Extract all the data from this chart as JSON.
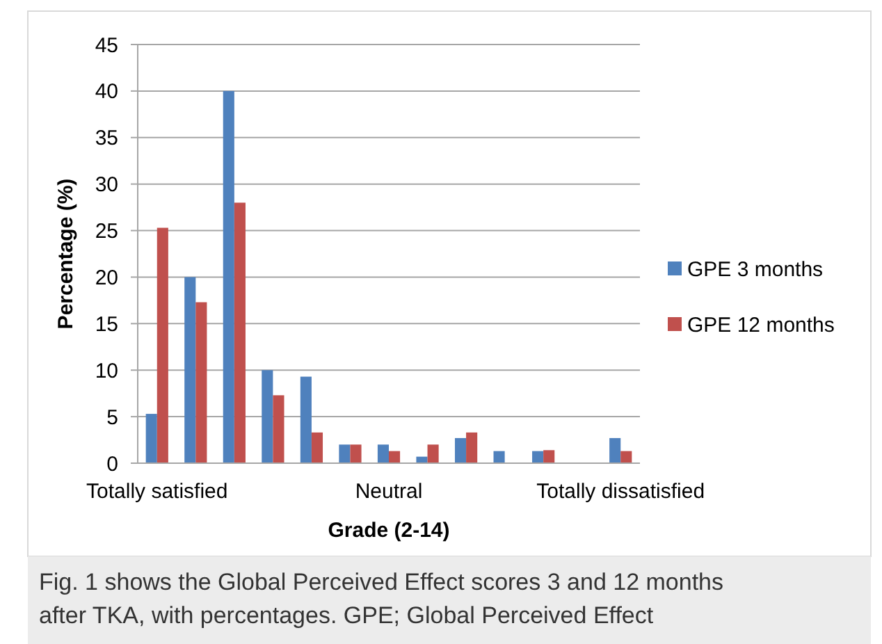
{
  "chart_data": {
    "type": "bar",
    "xlabel": "Grade (2-14)",
    "ylabel": "Percentage (%)",
    "categories": [
      "Totally satisfied",
      null,
      null,
      null,
      null,
      null,
      "Neutral",
      null,
      null,
      null,
      null,
      null,
      "Totally dissatisfied"
    ],
    "series": [
      {
        "name": "GPE 3 months",
        "color": "#4f81bd",
        "values": [
          5.3,
          20,
          40,
          10,
          9.3,
          2,
          2,
          0.7,
          2.7,
          1.3,
          1.3,
          0,
          2.7
        ]
      },
      {
        "name": "GPE 12 months",
        "color": "#c0504d",
        "values": [
          25.3,
          17.3,
          28,
          7.3,
          3.3,
          2,
          1.3,
          2,
          3.3,
          0,
          1.4,
          0,
          1.3
        ]
      }
    ],
    "ylim": [
      0,
      45
    ],
    "yticks": [
      0,
      5,
      10,
      15,
      20,
      25,
      30,
      35,
      40,
      45
    ],
    "grid": "y",
    "legend": "right",
    "annotations": [
      "Fig. 1 shows the Global Perceived Effect scores 3 and 12 months after TKA, with percentages. GPE; Global Perceived Effect"
    ]
  }
}
